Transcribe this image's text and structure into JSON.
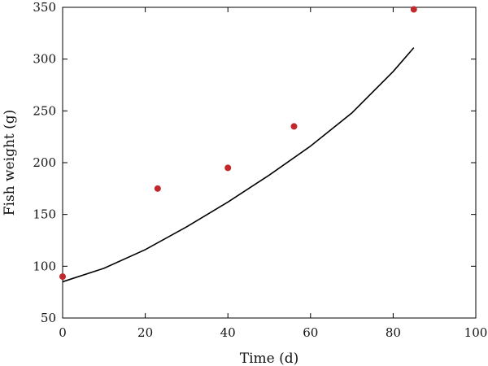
{
  "chart_data": {
    "type": "scatter",
    "title": "",
    "xlabel": "Time (d)",
    "ylabel": "Fish weight (g)",
    "xlim": [
      0,
      100
    ],
    "ylim": [
      50,
      350
    ],
    "xticks": [
      0,
      20,
      40,
      60,
      80,
      100
    ],
    "yticks": [
      50,
      100,
      150,
      200,
      250,
      300,
      350
    ],
    "grid": false,
    "legend": "none",
    "series": [
      {
        "kind": "scatter",
        "color": "#c0282c",
        "x": [
          0,
          23,
          40,
          56,
          85
        ],
        "y": [
          90,
          175,
          195,
          235,
          348
        ]
      },
      {
        "kind": "line",
        "color": "#000000",
        "x": [
          0,
          10,
          20,
          30,
          40,
          50,
          60,
          70,
          80,
          85
        ],
        "y": [
          85,
          98,
          116,
          138,
          162,
          188,
          216,
          248,
          288,
          311
        ]
      }
    ]
  }
}
